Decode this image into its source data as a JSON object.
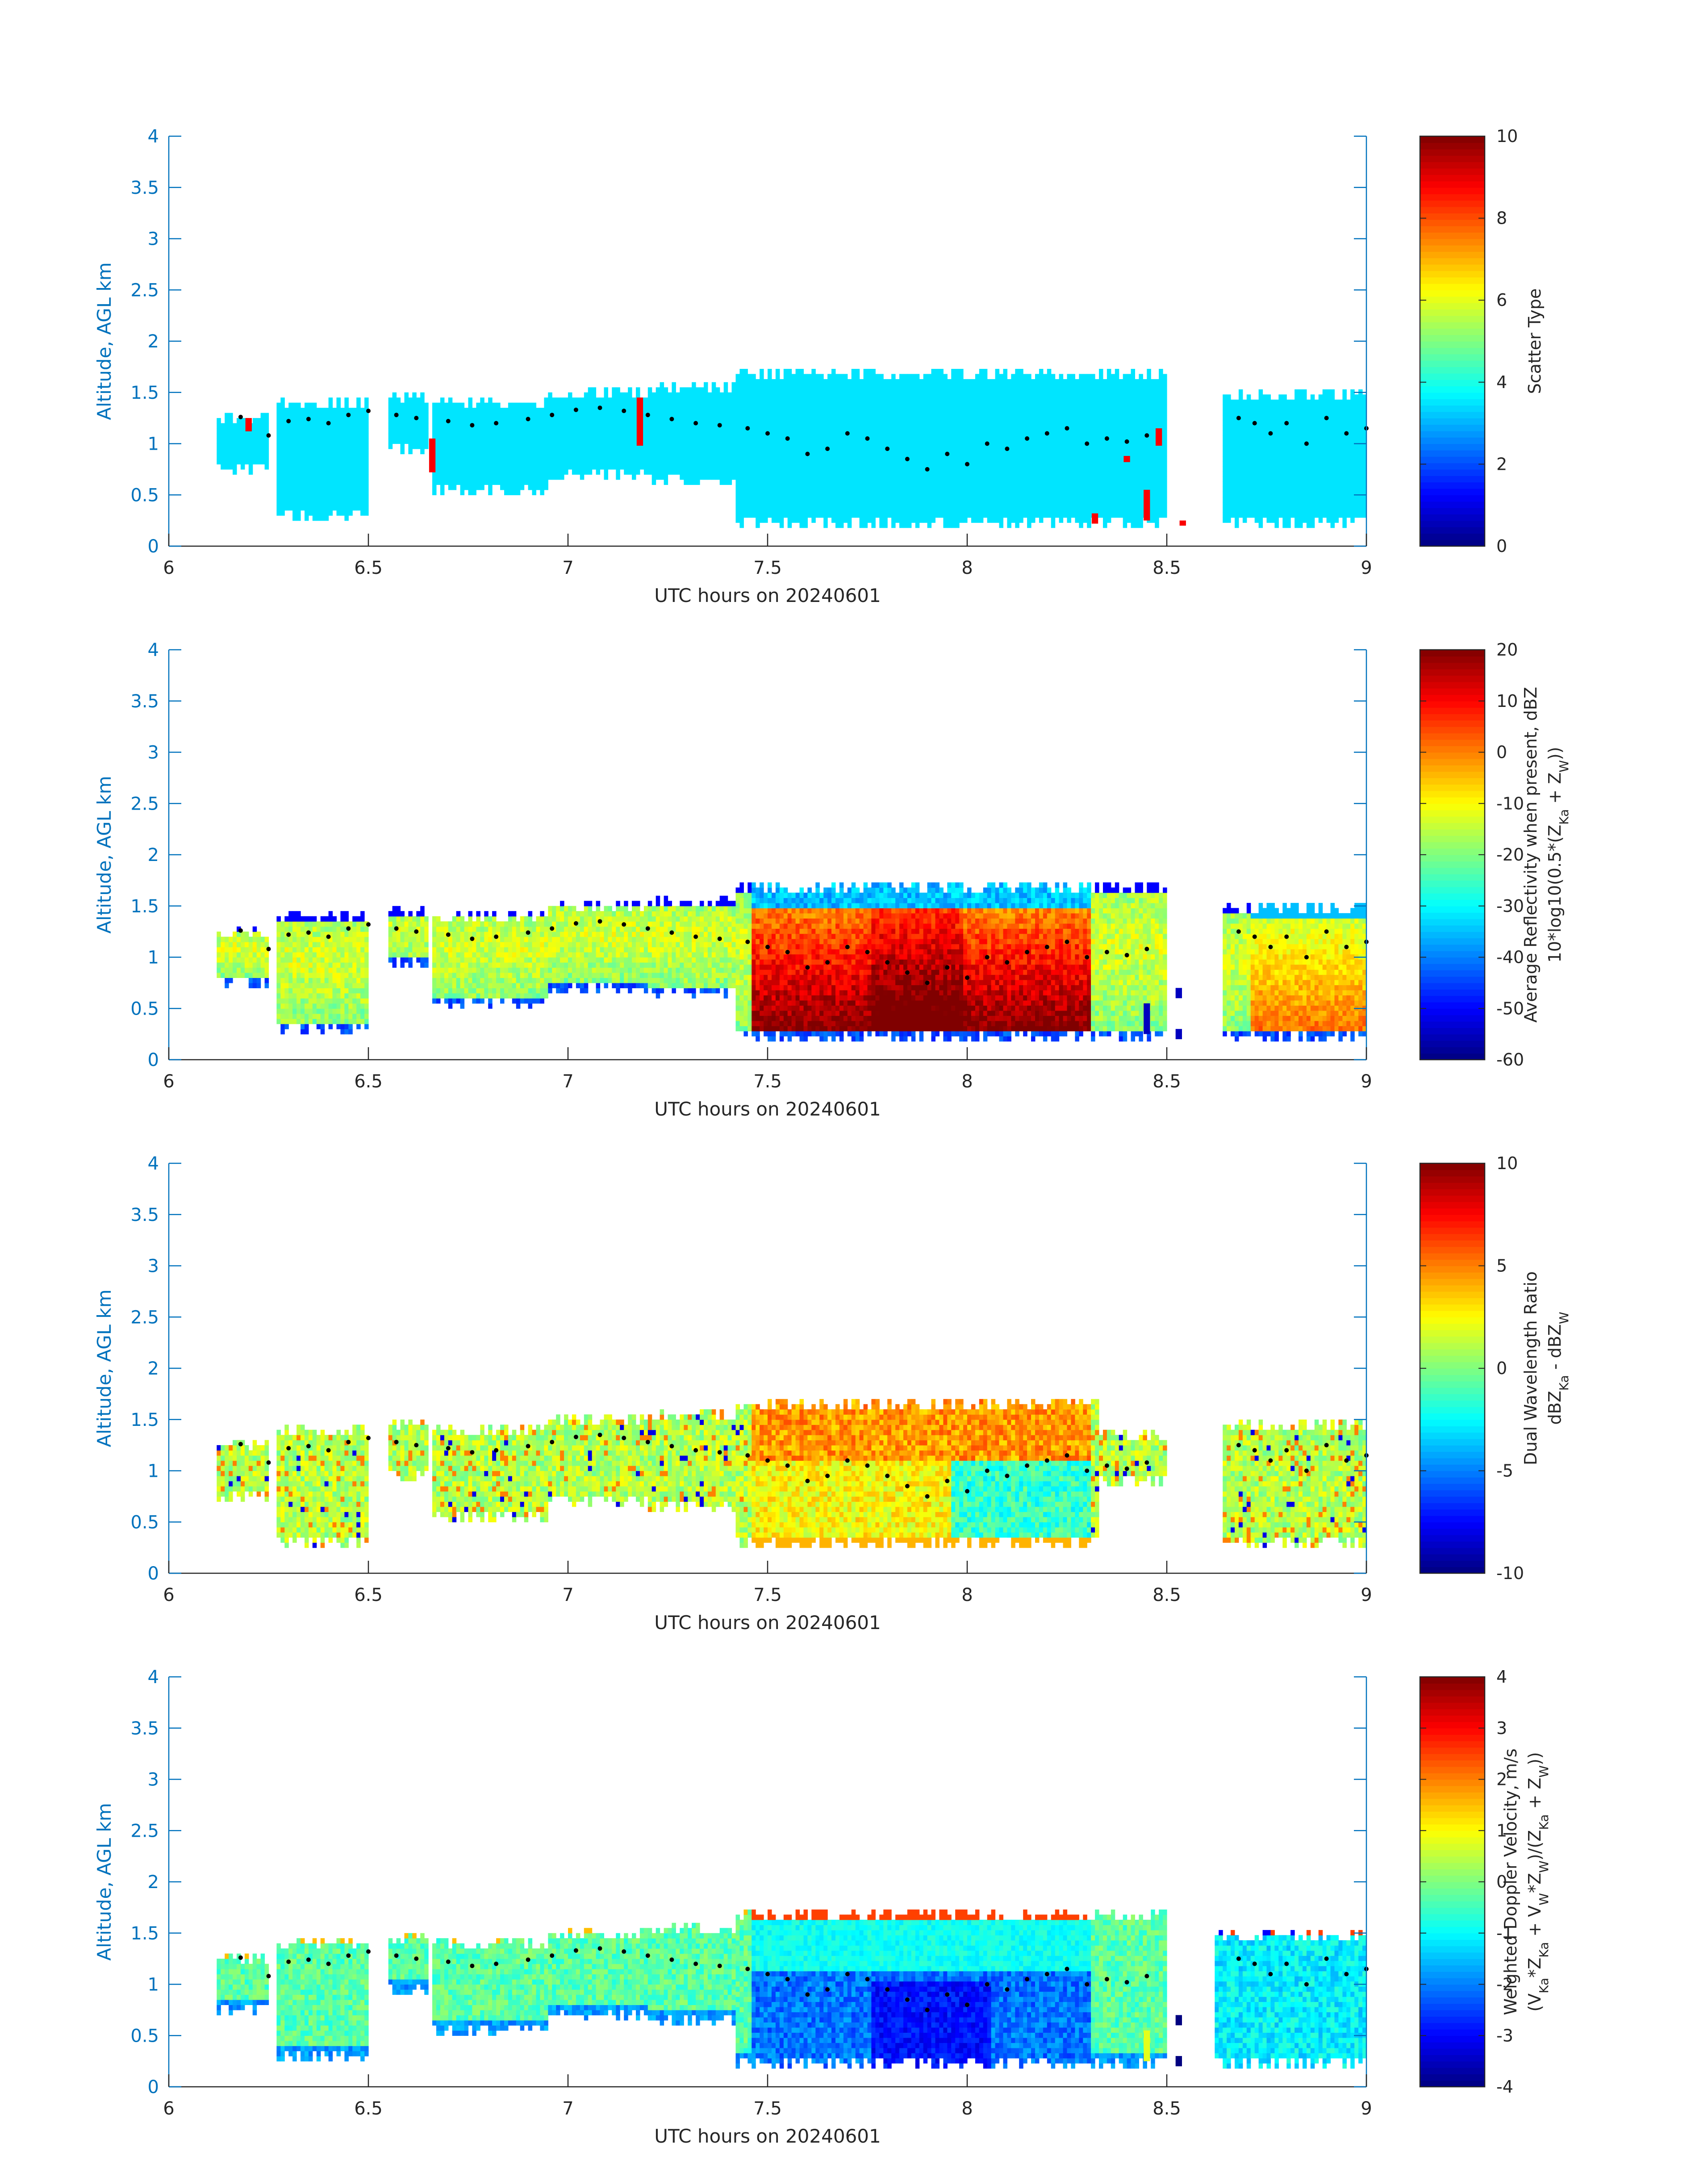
{
  "chart_data": [
    {
      "type": "heatmap",
      "xlabel": "UTC hours on 20240601",
      "ylabel": "Altitude, AGL km",
      "xlim": [
        6,
        9
      ],
      "ylim": [
        0,
        4
      ],
      "x_ticks": [
        "6",
        "6.5",
        "7",
        "7.5",
        "8",
        "8.5",
        "9"
      ],
      "y_ticks": [
        "0",
        "0.5",
        "1",
        "1.5",
        "2",
        "2.5",
        "3",
        "3.5",
        "4"
      ],
      "colorbar": {
        "label_lines": [
          "Scatter Type"
        ],
        "range": [
          0,
          10
        ],
        "ticks": [
          "0",
          "2",
          "4",
          "6",
          "8",
          "10"
        ],
        "colormap": "jet"
      },
      "field": "scatter",
      "echo_segments": [
        {
          "x0": 6.12,
          "x1": 6.25,
          "top": 1.3,
          "base": 0.7
        },
        {
          "x0": 6.27,
          "x1": 6.5,
          "top": 1.43,
          "base": 0.25
        },
        {
          "x0": 6.55,
          "x1": 6.65,
          "top": 1.47,
          "base": 0.9
        },
        {
          "x0": 6.66,
          "x1": 6.95,
          "top": 1.45,
          "base": 0.5
        },
        {
          "x0": 6.95,
          "x1": 7.2,
          "top": 1.55,
          "base": 0.65
        },
        {
          "x0": 7.2,
          "x1": 7.42,
          "top": 1.57,
          "base": 0.6
        },
        {
          "x0": 7.42,
          "x1": 8.5,
          "top": 1.7,
          "base": 0.18
        },
        {
          "x0": 8.64,
          "x1": 9.0,
          "top": 1.5,
          "base": 0.18
        }
      ],
      "melting_layer_points": [
        [
          6.18,
          1.26
        ],
        [
          6.25,
          1.08
        ],
        [
          6.3,
          1.22
        ],
        [
          6.35,
          1.24
        ],
        [
          6.4,
          1.2
        ],
        [
          6.45,
          1.28
        ],
        [
          6.5,
          1.32
        ],
        [
          6.57,
          1.28
        ],
        [
          6.62,
          1.25
        ],
        [
          6.7,
          1.22
        ],
        [
          6.76,
          1.18
        ],
        [
          6.82,
          1.2
        ],
        [
          6.9,
          1.24
        ],
        [
          6.96,
          1.28
        ],
        [
          7.02,
          1.33
        ],
        [
          7.08,
          1.35
        ],
        [
          7.14,
          1.32
        ],
        [
          7.2,
          1.28
        ],
        [
          7.26,
          1.24
        ],
        [
          7.32,
          1.2
        ],
        [
          7.38,
          1.18
        ],
        [
          7.45,
          1.15
        ],
        [
          7.5,
          1.1
        ],
        [
          7.55,
          1.05
        ],
        [
          7.6,
          0.9
        ],
        [
          7.65,
          0.95
        ],
        [
          7.7,
          1.1
        ],
        [
          7.75,
          1.05
        ],
        [
          7.8,
          0.95
        ],
        [
          7.85,
          0.85
        ],
        [
          7.9,
          0.75
        ],
        [
          7.95,
          0.9
        ],
        [
          8.0,
          0.8
        ],
        [
          8.05,
          1.0
        ],
        [
          8.1,
          0.95
        ],
        [
          8.15,
          1.05
        ],
        [
          8.2,
          1.1
        ],
        [
          8.25,
          1.15
        ],
        [
          8.3,
          1.0
        ],
        [
          8.35,
          1.05
        ],
        [
          8.4,
          1.02
        ],
        [
          8.45,
          1.08
        ],
        [
          8.68,
          1.25
        ],
        [
          8.72,
          1.2
        ],
        [
          8.76,
          1.1
        ],
        [
          8.8,
          1.2
        ],
        [
          8.85,
          1.0
        ],
        [
          8.9,
          1.25
        ],
        [
          8.95,
          1.1
        ],
        [
          9.0,
          1.15
        ]
      ],
      "special_bins": [
        {
          "x": 6.2,
          "y0": 1.12,
          "y1": 1.25,
          "value": 8.8
        },
        {
          "x": 6.66,
          "y0": 0.72,
          "y1": 1.05,
          "value": 8.8
        },
        {
          "x": 7.18,
          "y0": 0.98,
          "y1": 1.45,
          "value": 8.8
        },
        {
          "x": 8.32,
          "y0": 0.22,
          "y1": 0.32,
          "value": 8.8
        },
        {
          "x": 8.45,
          "y0": 0.25,
          "y1": 0.55,
          "value": 8.8
        },
        {
          "x": 8.48,
          "y0": 0.98,
          "y1": 1.15,
          "value": 8.8
        },
        {
          "x": 8.54,
          "y0": 0.2,
          "y1": 0.25,
          "value": 8.8
        },
        {
          "x": 8.4,
          "y0": 0.82,
          "y1": 0.88,
          "value": 8.8
        }
      ]
    },
    {
      "type": "heatmap",
      "xlabel": "UTC hours on 20240601",
      "ylabel": "Altitude, AGL km",
      "xlim": [
        6,
        9
      ],
      "ylim": [
        0,
        4
      ],
      "x_ticks": [
        "6",
        "6.5",
        "7",
        "7.5",
        "8",
        "8.5",
        "9"
      ],
      "y_ticks": [
        "0",
        "0.5",
        "1",
        "1.5",
        "2",
        "2.5",
        "3",
        "3.5",
        "4"
      ],
      "colorbar": {
        "label_lines": [
          "Average Reflectivity when present, dBZ",
          "10*log10(0.5*(Z",
          "Ka",
          " + Z",
          "W",
          "))"
        ],
        "range": [
          -60,
          20
        ],
        "ticks": [
          "-60",
          "-50",
          "-40",
          "-30",
          "-20",
          "-10",
          "0",
          "10",
          "20"
        ],
        "colormap": "jet"
      },
      "field": "reflectivity",
      "echo_segments": [
        {
          "x0": 6.12,
          "x1": 6.25,
          "top": 1.3,
          "base": 0.7
        },
        {
          "x0": 6.27,
          "x1": 6.5,
          "top": 1.43,
          "base": 0.25
        },
        {
          "x0": 6.55,
          "x1": 6.65,
          "top": 1.47,
          "base": 0.9
        },
        {
          "x0": 6.66,
          "x1": 6.95,
          "top": 1.45,
          "base": 0.5
        },
        {
          "x0": 6.95,
          "x1": 7.2,
          "top": 1.55,
          "base": 0.65
        },
        {
          "x0": 7.2,
          "x1": 7.42,
          "top": 1.57,
          "base": 0.6
        },
        {
          "x0": 7.42,
          "x1": 8.5,
          "top": 1.7,
          "base": 0.18
        },
        {
          "x0": 8.64,
          "x1": 9.0,
          "top": 1.5,
          "base": 0.18
        }
      ],
      "melting_layer_points": [
        [
          6.18,
          1.26
        ],
        [
          6.25,
          1.08
        ],
        [
          6.3,
          1.22
        ],
        [
          6.35,
          1.24
        ],
        [
          6.4,
          1.2
        ],
        [
          6.45,
          1.28
        ],
        [
          6.5,
          1.32
        ],
        [
          6.57,
          1.28
        ],
        [
          6.62,
          1.25
        ],
        [
          6.7,
          1.22
        ],
        [
          6.76,
          1.18
        ],
        [
          6.82,
          1.2
        ],
        [
          6.9,
          1.24
        ],
        [
          6.96,
          1.28
        ],
        [
          7.02,
          1.33
        ],
        [
          7.08,
          1.35
        ],
        [
          7.14,
          1.32
        ],
        [
          7.2,
          1.28
        ],
        [
          7.26,
          1.24
        ],
        [
          7.32,
          1.2
        ],
        [
          7.38,
          1.18
        ],
        [
          7.45,
          1.15
        ],
        [
          7.5,
          1.1
        ],
        [
          7.55,
          1.05
        ],
        [
          7.6,
          0.9
        ],
        [
          7.65,
          0.95
        ],
        [
          7.7,
          1.1
        ],
        [
          7.75,
          1.05
        ],
        [
          7.8,
          0.95
        ],
        [
          7.85,
          0.85
        ],
        [
          7.9,
          0.75
        ],
        [
          7.95,
          0.9
        ],
        [
          8.0,
          0.8
        ],
        [
          8.05,
          1.0
        ],
        [
          8.1,
          0.95
        ],
        [
          8.15,
          1.05
        ],
        [
          8.2,
          1.1
        ],
        [
          8.25,
          1.15
        ],
        [
          8.3,
          1.0
        ],
        [
          8.35,
          1.05
        ],
        [
          8.4,
          1.02
        ],
        [
          8.45,
          1.08
        ],
        [
          8.68,
          1.25
        ],
        [
          8.72,
          1.2
        ],
        [
          8.76,
          1.1
        ],
        [
          8.8,
          1.2
        ],
        [
          8.85,
          1.0
        ],
        [
          8.9,
          1.25
        ],
        [
          8.95,
          1.1
        ],
        [
          9.0,
          1.15
        ]
      ],
      "special_bins": [
        {
          "x": 8.45,
          "y0": 0.25,
          "y1": 0.55,
          "value": -55
        },
        {
          "x": 8.53,
          "y0": 0.2,
          "y1": 0.3,
          "value": -55
        },
        {
          "x": 8.53,
          "y0": 0.6,
          "y1": 0.7,
          "value": -55
        }
      ]
    },
    {
      "type": "heatmap",
      "xlabel": "UTC hours on 20240601",
      "ylabel": "Altitude, AGL km",
      "xlim": [
        6,
        9
      ],
      "ylim": [
        0,
        4
      ],
      "x_ticks": [
        "6",
        "6.5",
        "7",
        "7.5",
        "8",
        "8.5",
        "9"
      ],
      "y_ticks": [
        "0",
        "0.5",
        "1",
        "1.5",
        "2",
        "2.5",
        "3",
        "3.5",
        "4"
      ],
      "colorbar": {
        "label_lines": [
          "Dual Wavelength Ratio",
          "dBZ",
          "Ka",
          " - dBZ",
          "W"
        ],
        "range": [
          -10,
          10
        ],
        "ticks": [
          "-10",
          "-5",
          "0",
          "5",
          "10"
        ],
        "colormap": "jet"
      },
      "field": "dwr",
      "echo_segments": [
        {
          "x0": 6.12,
          "x1": 6.25,
          "top": 1.3,
          "base": 0.7
        },
        {
          "x0": 6.27,
          "x1": 6.5,
          "top": 1.43,
          "base": 0.25
        },
        {
          "x0": 6.55,
          "x1": 6.65,
          "top": 1.47,
          "base": 0.9
        },
        {
          "x0": 6.66,
          "x1": 6.95,
          "top": 1.45,
          "base": 0.5
        },
        {
          "x0": 6.95,
          "x1": 7.2,
          "top": 1.55,
          "base": 0.65
        },
        {
          "x0": 7.2,
          "x1": 7.42,
          "top": 1.57,
          "base": 0.6
        },
        {
          "x0": 7.42,
          "x1": 8.33,
          "top": 1.7,
          "base": 0.25
        },
        {
          "x0": 8.33,
          "x1": 8.5,
          "top": 1.4,
          "base": 0.85
        },
        {
          "x0": 8.64,
          "x1": 9.0,
          "top": 1.5,
          "base": 0.25
        }
      ],
      "melting_layer_points": [
        [
          6.18,
          1.26
        ],
        [
          6.25,
          1.08
        ],
        [
          6.3,
          1.22
        ],
        [
          6.35,
          1.24
        ],
        [
          6.4,
          1.2
        ],
        [
          6.45,
          1.28
        ],
        [
          6.5,
          1.32
        ],
        [
          6.57,
          1.28
        ],
        [
          6.62,
          1.25
        ],
        [
          6.7,
          1.22
        ],
        [
          6.76,
          1.18
        ],
        [
          6.82,
          1.2
        ],
        [
          6.9,
          1.24
        ],
        [
          6.96,
          1.28
        ],
        [
          7.02,
          1.33
        ],
        [
          7.08,
          1.35
        ],
        [
          7.14,
          1.32
        ],
        [
          7.2,
          1.28
        ],
        [
          7.26,
          1.24
        ],
        [
          7.32,
          1.2
        ],
        [
          7.38,
          1.18
        ],
        [
          7.45,
          1.15
        ],
        [
          7.5,
          1.1
        ],
        [
          7.55,
          1.05
        ],
        [
          7.6,
          0.9
        ],
        [
          7.65,
          0.95
        ],
        [
          7.7,
          1.1
        ],
        [
          7.75,
          1.05
        ],
        [
          7.8,
          0.95
        ],
        [
          7.85,
          0.85
        ],
        [
          7.9,
          0.75
        ],
        [
          7.95,
          0.9
        ],
        [
          8.0,
          0.8
        ],
        [
          8.05,
          1.0
        ],
        [
          8.1,
          0.95
        ],
        [
          8.15,
          1.05
        ],
        [
          8.2,
          1.1
        ],
        [
          8.25,
          1.15
        ],
        [
          8.3,
          1.0
        ],
        [
          8.35,
          1.05
        ],
        [
          8.4,
          1.02
        ],
        [
          8.45,
          1.08
        ],
        [
          8.68,
          1.25
        ],
        [
          8.72,
          1.2
        ],
        [
          8.76,
          1.1
        ],
        [
          8.8,
          1.2
        ],
        [
          8.85,
          1.0
        ],
        [
          8.9,
          1.25
        ],
        [
          8.95,
          1.1
        ],
        [
          9.0,
          1.15
        ]
      ],
      "special_bins": []
    },
    {
      "type": "heatmap",
      "xlabel": "UTC hours on 20240601",
      "ylabel": "Altitude, AGL km",
      "xlim": [
        6,
        9
      ],
      "ylim": [
        0,
        4
      ],
      "x_ticks": [
        "6",
        "6.5",
        "7",
        "7.5",
        "8",
        "8.5",
        "9"
      ],
      "y_ticks": [
        "0",
        "0.5",
        "1",
        "1.5",
        "2",
        "2.5",
        "3",
        "3.5",
        "4"
      ],
      "colorbar": {
        "label_lines": [
          "Weighted Doppler Velocity, m/s",
          "(V",
          "Ka",
          "*Z",
          "Ka",
          " + V",
          "W",
          "*Z",
          "W",
          ")/(Z",
          "Ka",
          " + Z",
          "W",
          "))"
        ],
        "range": [
          -4,
          4
        ],
        "ticks": [
          "-4",
          "-3",
          "-2",
          "-1",
          "0",
          "1",
          "2",
          "3",
          "4"
        ],
        "colormap": "jet"
      },
      "field": "velocity",
      "echo_segments": [
        {
          "x0": 6.12,
          "x1": 6.25,
          "top": 1.3,
          "base": 0.7
        },
        {
          "x0": 6.27,
          "x1": 6.5,
          "top": 1.43,
          "base": 0.25
        },
        {
          "x0": 6.55,
          "x1": 6.65,
          "top": 1.47,
          "base": 0.9
        },
        {
          "x0": 6.66,
          "x1": 6.95,
          "top": 1.45,
          "base": 0.5
        },
        {
          "x0": 6.95,
          "x1": 7.2,
          "top": 1.55,
          "base": 0.65
        },
        {
          "x0": 7.2,
          "x1": 7.42,
          "top": 1.57,
          "base": 0.6
        },
        {
          "x0": 7.42,
          "x1": 8.5,
          "top": 1.7,
          "base": 0.18
        },
        {
          "x0": 8.62,
          "x1": 9.0,
          "top": 1.5,
          "base": 0.18
        }
      ],
      "melting_layer_points": [
        [
          6.18,
          1.26
        ],
        [
          6.25,
          1.08
        ],
        [
          6.3,
          1.22
        ],
        [
          6.35,
          1.24
        ],
        [
          6.4,
          1.2
        ],
        [
          6.45,
          1.28
        ],
        [
          6.5,
          1.32
        ],
        [
          6.57,
          1.28
        ],
        [
          6.62,
          1.25
        ],
        [
          6.7,
          1.22
        ],
        [
          6.76,
          1.18
        ],
        [
          6.82,
          1.2
        ],
        [
          6.9,
          1.24
        ],
        [
          6.96,
          1.28
        ],
        [
          7.02,
          1.33
        ],
        [
          7.08,
          1.35
        ],
        [
          7.14,
          1.32
        ],
        [
          7.2,
          1.28
        ],
        [
          7.26,
          1.24
        ],
        [
          7.32,
          1.2
        ],
        [
          7.38,
          1.18
        ],
        [
          7.45,
          1.15
        ],
        [
          7.5,
          1.1
        ],
        [
          7.55,
          1.05
        ],
        [
          7.6,
          0.9
        ],
        [
          7.65,
          0.95
        ],
        [
          7.7,
          1.1
        ],
        [
          7.75,
          1.05
        ],
        [
          7.8,
          0.95
        ],
        [
          7.85,
          0.85
        ],
        [
          7.9,
          0.75
        ],
        [
          7.95,
          0.9
        ],
        [
          8.0,
          0.8
        ],
        [
          8.05,
          1.0
        ],
        [
          8.1,
          0.95
        ],
        [
          8.15,
          1.05
        ],
        [
          8.2,
          1.1
        ],
        [
          8.25,
          1.15
        ],
        [
          8.3,
          1.0
        ],
        [
          8.35,
          1.05
        ],
        [
          8.4,
          1.02
        ],
        [
          8.45,
          1.08
        ],
        [
          8.68,
          1.25
        ],
        [
          8.72,
          1.2
        ],
        [
          8.76,
          1.1
        ],
        [
          8.8,
          1.2
        ],
        [
          8.85,
          1.0
        ],
        [
          8.9,
          1.25
        ],
        [
          8.95,
          1.1
        ],
        [
          9.0,
          1.15
        ]
      ],
      "special_bins": [
        {
          "x": 8.45,
          "y0": 0.25,
          "y1": 0.55,
          "value": 0.8
        },
        {
          "x": 8.53,
          "y0": 0.2,
          "y1": 0.3,
          "value": -4
        },
        {
          "x": 8.53,
          "y0": 0.6,
          "y1": 0.7,
          "value": -4
        }
      ]
    }
  ]
}
